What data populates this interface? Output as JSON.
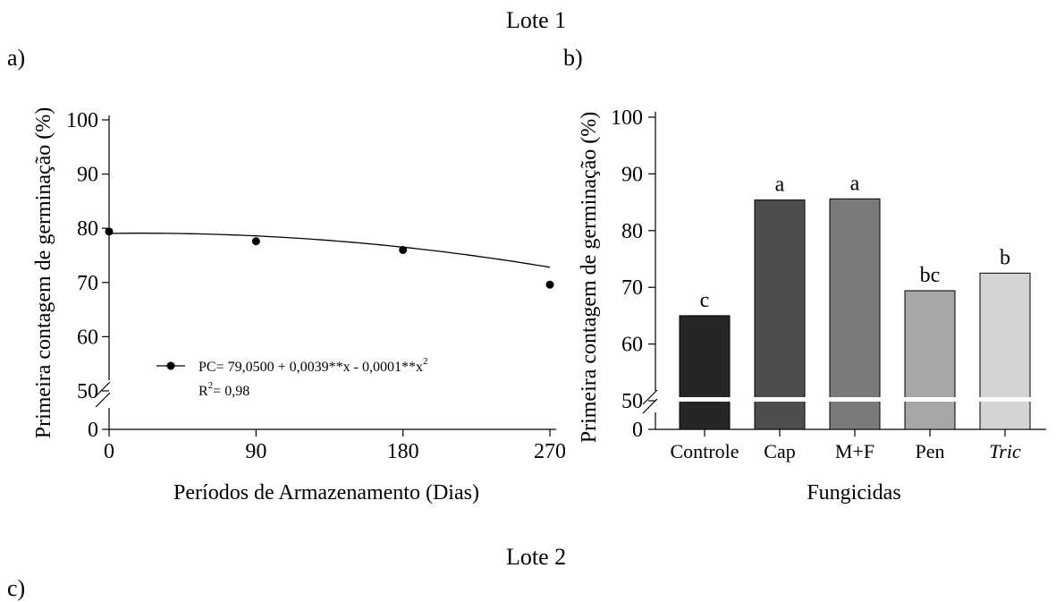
{
  "lote1_title": "Lote 1",
  "lote2_title": "Lote 2",
  "panel_labels": {
    "a": "a)",
    "b": "b)",
    "c": "c)"
  },
  "chart_data": [
    {
      "panel": "a",
      "type": "scatter",
      "xlabel": "Períodos de Armazenamento (Dias)",
      "ylabel": "Primeira contagem de germinação (%)",
      "x_ticks": [
        0,
        90,
        180,
        270
      ],
      "y_ticks": [
        0,
        50,
        60,
        70,
        80,
        90,
        100
      ],
      "ylim": [
        0,
        100
      ],
      "axis_break": [
        0,
        50
      ],
      "points": [
        {
          "x": 0,
          "y": 79.4
        },
        {
          "x": 90,
          "y": 77.6
        },
        {
          "x": 180,
          "y": 76.0
        },
        {
          "x": 270,
          "y": 69.6
        }
      ],
      "fit": {
        "a": 79.05,
        "b": 0.0039,
        "c": -0.0001
      },
      "legend_equation": "PC= 79,0500 + 0,0039**x - 0,0001**x",
      "legend_equation_sup": "2",
      "legend_r2_base": "R",
      "legend_r2_sup": "2",
      "legend_r2_value": "= 0,98"
    },
    {
      "panel": "b",
      "type": "bar",
      "xlabel": "Fungicidas",
      "ylabel": "Primeira contagem de germinação (%)",
      "categories": [
        "Controle",
        "Cap",
        "M+F",
        "Pen",
        "Tric"
      ],
      "italic_categories": [
        "Tric"
      ],
      "values": [
        65.0,
        85.4,
        85.6,
        69.4,
        72.5
      ],
      "letters": [
        "c",
        "a",
        "a",
        "bc",
        "b"
      ],
      "colors": [
        "#262626",
        "#4d4d4d",
        "#7a7a7a",
        "#a6a6a6",
        "#d4d4d4"
      ],
      "y_ticks": [
        0,
        50,
        60,
        70,
        80,
        90,
        100
      ],
      "ylim": [
        0,
        100
      ],
      "axis_break": [
        0,
        50
      ]
    }
  ]
}
